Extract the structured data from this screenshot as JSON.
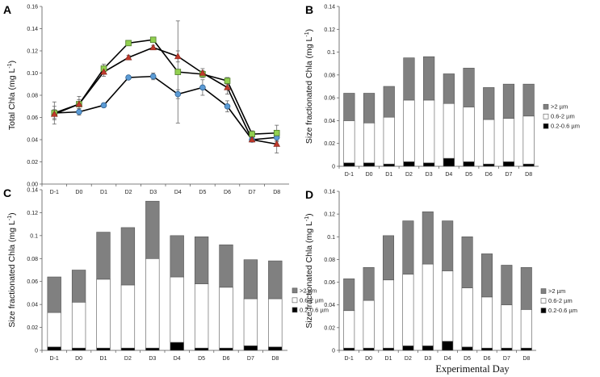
{
  "xlabel": "Experimental Day",
  "chart_data": [
    {
      "panel": "A",
      "type": "line",
      "title": "",
      "ylabel": "Total Chla (mg L-1)",
      "ylabel_main": "Total Chla (mg L",
      "ylabel_sup": "-1",
      "ylabel_close": ")",
      "xlabel": "",
      "ylim": [
        0,
        0.16
      ],
      "yticks": [
        0,
        0.02,
        0.04,
        0.06,
        0.08,
        0.1,
        0.12,
        0.14,
        0.16
      ],
      "ytick_labels": [
        "0.00",
        "0.02",
        "0.04",
        "0.06",
        "0.08",
        "0.10",
        "0.12",
        "0.14",
        "0.16"
      ],
      "categories": [
        "D-1",
        "D0",
        "D1",
        "D2",
        "D3",
        "D4",
        "D5",
        "D6",
        "D7",
        "D8"
      ],
      "series": [
        {
          "name": "blue circles",
          "color": "#5b9bd5",
          "marker": "circle",
          "values": [
            0.064,
            0.065,
            0.071,
            0.096,
            0.097,
            0.081,
            0.087,
            0.07,
            0.04,
            0.042
          ],
          "errors": [
            0.006,
            0.003,
            0.002,
            0.001,
            0.003,
            0.004,
            0.007,
            0.005,
            0.002,
            0.004
          ]
        },
        {
          "name": "green squares",
          "color": "#92d050",
          "marker": "square",
          "values": [
            0.064,
            0.072,
            0.104,
            0.127,
            0.13,
            0.101,
            0.099,
            0.093,
            0.045,
            0.046
          ],
          "errors": [
            0.01,
            0.007,
            0.004,
            0.002,
            0.002,
            0.046,
            0.003,
            0.003,
            0.003,
            0.007
          ]
        },
        {
          "name": "red triangles",
          "color": "#c0392b",
          "marker": "triangle",
          "values": [
            0.063,
            0.072,
            0.101,
            0.114,
            0.123,
            0.115,
            0.1,
            0.087,
            0.04,
            0.036
          ],
          "errors": [
            0.004,
            0.004,
            0.004,
            0.002,
            0.002,
            0.005,
            0.004,
            0.006,
            0.002,
            0.008
          ]
        }
      ]
    },
    {
      "panel": "B",
      "type": "bar",
      "stacked": true,
      "title": "",
      "ylabel": "Size fractionated Chla (mg L-1)",
      "ylabel_main": "Size fractionated Chla  (mg L",
      "ylabel_sup": "-1",
      "ylabel_close": ")",
      "xlabel": "",
      "ylim": [
        0,
        0.14
      ],
      "yticks": [
        0,
        0.02,
        0.04,
        0.06,
        0.08,
        0.1,
        0.12,
        0.14
      ],
      "ytick_labels": [
        "0",
        "0.02",
        "0.04",
        "0.06",
        "0.08",
        "0.1",
        "0.12",
        "0.14"
      ],
      "categories": [
        "D-1",
        "D0",
        "D1",
        "D2",
        "D3",
        "D4",
        "D5",
        "D6",
        "D7",
        "D8"
      ],
      "series": [
        {
          "name": "0.2-0.6 µm",
          "color": "#000000",
          "values": [
            0.003,
            0.003,
            0.002,
            0.004,
            0.003,
            0.007,
            0.004,
            0.002,
            0.004,
            0.002
          ]
        },
        {
          "name": "0.6-2 µm",
          "color": "#ffffff",
          "values": [
            0.037,
            0.035,
            0.041,
            0.054,
            0.055,
            0.048,
            0.048,
            0.039,
            0.038,
            0.042
          ]
        },
        {
          "name": ">2 µm",
          "color": "#808080",
          "values": [
            0.024,
            0.026,
            0.027,
            0.037,
            0.038,
            0.026,
            0.034,
            0.028,
            0.03,
            0.028
          ]
        }
      ],
      "legend": [
        ">2 µm",
        "0.6-2 µm",
        "0.2-0.6 µm"
      ],
      "legend_position": "right"
    },
    {
      "panel": "C",
      "type": "bar",
      "stacked": true,
      "title": "",
      "ylabel": "Size fractionated Chla (mg L-1)",
      "ylabel_main": "Size fractionated Chla  (mg L",
      "ylabel_sup": "-1",
      "ylabel_close": ")",
      "xlabel": "",
      "ylim": [
        0,
        0.14
      ],
      "yticks": [
        0,
        0.02,
        0.04,
        0.06,
        0.08,
        0.1,
        0.12,
        0.14
      ],
      "ytick_labels": [
        "0",
        "0.02",
        "0.04",
        "0.06",
        "0.08",
        "0.1",
        "0.12",
        "0.14"
      ],
      "categories": [
        "D-1",
        "D0",
        "D1",
        "D2",
        "D3",
        "D4",
        "D5",
        "D6",
        "D7",
        "D8"
      ],
      "series": [
        {
          "name": "0.2-0.6 µm",
          "color": "#000000",
          "values": [
            0.003,
            0.002,
            0.002,
            0.002,
            0.002,
            0.007,
            0.002,
            0.002,
            0.004,
            0.003
          ]
        },
        {
          "name": "0.6-2 µm",
          "color": "#ffffff",
          "values": [
            0.03,
            0.04,
            0.06,
            0.055,
            0.078,
            0.057,
            0.056,
            0.053,
            0.041,
            0.042
          ]
        },
        {
          "name": ">2 µm",
          "color": "#808080",
          "values": [
            0.031,
            0.028,
            0.041,
            0.05,
            0.05,
            0.036,
            0.041,
            0.037,
            0.034,
            0.033
          ]
        }
      ],
      "legend": [
        ">2 µm",
        "0.6-2 µm",
        "0.2-0.6 µm"
      ],
      "legend_position": "right"
    },
    {
      "panel": "D",
      "type": "bar",
      "stacked": true,
      "title": "",
      "ylabel": "Size fractionated Chla (mg L-1)",
      "ylabel_main": "Size fractionated Chla  (mg L",
      "ylabel_sup": "-1",
      "ylabel_close": ")",
      "xlabel": "Experimental Day",
      "ylim": [
        0,
        0.14
      ],
      "yticks": [
        0,
        0.02,
        0.04,
        0.06,
        0.08,
        0.1,
        0.12,
        0.14
      ],
      "ytick_labels": [
        "0",
        "0.02",
        "0.04",
        "0.06",
        "0.08",
        "0.1",
        "0.12",
        "0.14"
      ],
      "categories": [
        "D-1",
        "D0",
        "D1",
        "D2",
        "D3",
        "D4",
        "D5",
        "D6",
        "D7",
        "D8"
      ],
      "series": [
        {
          "name": "0.2-0.6 µm",
          "color": "#000000",
          "values": [
            0.002,
            0.002,
            0.002,
            0.004,
            0.004,
            0.008,
            0.003,
            0.002,
            0.002,
            0.002
          ]
        },
        {
          "name": "0.6-2 µm",
          "color": "#ffffff",
          "values": [
            0.033,
            0.042,
            0.06,
            0.063,
            0.072,
            0.062,
            0.052,
            0.045,
            0.038,
            0.034
          ]
        },
        {
          "name": ">2 µm",
          "color": "#808080",
          "values": [
            0.028,
            0.029,
            0.039,
            0.047,
            0.046,
            0.044,
            0.045,
            0.038,
            0.035,
            0.037
          ]
        }
      ],
      "legend": [
        ">2 µm",
        "0.6-2 µm",
        "0.2-0.6 µm"
      ],
      "legend_position": "right"
    }
  ]
}
